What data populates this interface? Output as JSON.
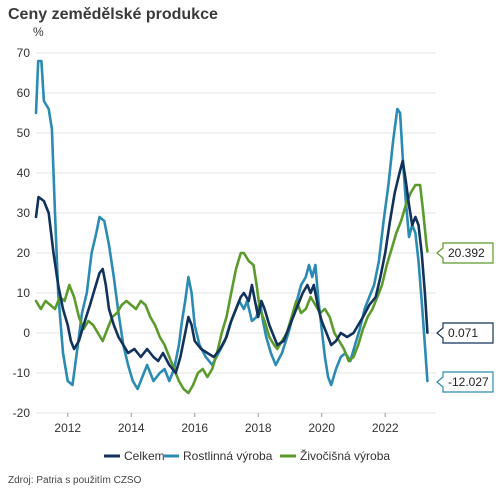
{
  "title": "Ceny zemědělské produkce",
  "unit_label": "%",
  "source": "Zdroj: Patria s použitím CZSO",
  "chart_data": {
    "type": "line",
    "title": "Ceny zemědělské produkce",
    "ylabel": "%",
    "xlabel": "",
    "ylim": [
      -20,
      70
    ],
    "xlim": [
      2011.0,
      2023.6
    ],
    "y_ticks": [
      -20,
      -10,
      0,
      10,
      20,
      30,
      40,
      50,
      60,
      70
    ],
    "x_ticks": [
      2012,
      2014,
      2016,
      2018,
      2020,
      2022
    ],
    "grid": "horizontal",
    "legend_position": "bottom",
    "series": [
      {
        "name": "Celkem",
        "color": "#13325b",
        "end_label": "0.071",
        "points": [
          [
            2011.0,
            29
          ],
          [
            2011.08,
            34
          ],
          [
            2011.25,
            33
          ],
          [
            2011.4,
            30
          ],
          [
            2011.55,
            20
          ],
          [
            2011.7,
            12
          ],
          [
            2011.85,
            6
          ],
          [
            2012.0,
            2
          ],
          [
            2012.1,
            -2
          ],
          [
            2012.2,
            -4
          ],
          [
            2012.35,
            -2
          ],
          [
            2012.5,
            2
          ],
          [
            2012.7,
            7
          ],
          [
            2012.85,
            11
          ],
          [
            2013.0,
            15
          ],
          [
            2013.1,
            16
          ],
          [
            2013.2,
            12
          ],
          [
            2013.3,
            6
          ],
          [
            2013.45,
            2
          ],
          [
            2013.6,
            -1
          ],
          [
            2013.75,
            -3
          ],
          [
            2013.9,
            -5
          ],
          [
            2014.1,
            -4
          ],
          [
            2014.3,
            -6
          ],
          [
            2014.5,
            -4
          ],
          [
            2014.7,
            -6
          ],
          [
            2014.85,
            -7
          ],
          [
            2015.0,
            -5
          ],
          [
            2015.2,
            -8
          ],
          [
            2015.4,
            -10
          ],
          [
            2015.55,
            -6
          ],
          [
            2015.7,
            0
          ],
          [
            2015.8,
            4
          ],
          [
            2015.9,
            2
          ],
          [
            2016.0,
            -2
          ],
          [
            2016.2,
            -4
          ],
          [
            2016.4,
            -5
          ],
          [
            2016.6,
            -6
          ],
          [
            2016.8,
            -4
          ],
          [
            2017.0,
            -1
          ],
          [
            2017.15,
            3
          ],
          [
            2017.3,
            6
          ],
          [
            2017.45,
            9
          ],
          [
            2017.55,
            10
          ],
          [
            2017.7,
            8
          ],
          [
            2017.8,
            12
          ],
          [
            2017.9,
            8
          ],
          [
            2018.0,
            4
          ],
          [
            2018.1,
            8
          ],
          [
            2018.2,
            6
          ],
          [
            2018.35,
            2
          ],
          [
            2018.5,
            -1
          ],
          [
            2018.6,
            -3
          ],
          [
            2018.8,
            -2
          ],
          [
            2019.0,
            2
          ],
          [
            2019.2,
            6
          ],
          [
            2019.4,
            10
          ],
          [
            2019.55,
            12
          ],
          [
            2019.65,
            10
          ],
          [
            2019.75,
            12
          ],
          [
            2019.9,
            6
          ],
          [
            2020.0,
            3
          ],
          [
            2020.15,
            0
          ],
          [
            2020.3,
            -3
          ],
          [
            2020.45,
            -2
          ],
          [
            2020.6,
            0
          ],
          [
            2020.8,
            -1
          ],
          [
            2021.0,
            0
          ],
          [
            2021.15,
            2
          ],
          [
            2021.3,
            4
          ],
          [
            2021.5,
            7
          ],
          [
            2021.7,
            9
          ],
          [
            2021.85,
            14
          ],
          [
            2022.0,
            20
          ],
          [
            2022.15,
            28
          ],
          [
            2022.3,
            35
          ],
          [
            2022.45,
            40
          ],
          [
            2022.55,
            43
          ],
          [
            2022.65,
            38
          ],
          [
            2022.75,
            32
          ],
          [
            2022.85,
            27
          ],
          [
            2022.95,
            29
          ],
          [
            2023.05,
            27
          ],
          [
            2023.15,
            20
          ],
          [
            2023.25,
            10
          ],
          [
            2023.33,
            0.071
          ]
        ]
      },
      {
        "name": "Rostlinná výroba",
        "color": "#2b8bb2",
        "end_label": "-12.027",
        "points": [
          [
            2011.0,
            55
          ],
          [
            2011.07,
            68
          ],
          [
            2011.17,
            68
          ],
          [
            2011.25,
            58
          ],
          [
            2011.4,
            56
          ],
          [
            2011.5,
            51
          ],
          [
            2011.6,
            30
          ],
          [
            2011.7,
            10
          ],
          [
            2011.85,
            -5
          ],
          [
            2012.0,
            -12
          ],
          [
            2012.15,
            -13
          ],
          [
            2012.3,
            -4
          ],
          [
            2012.45,
            5
          ],
          [
            2012.6,
            10
          ],
          [
            2012.75,
            20
          ],
          [
            2012.9,
            25
          ],
          [
            2013.0,
            29
          ],
          [
            2013.15,
            28
          ],
          [
            2013.3,
            22
          ],
          [
            2013.45,
            14
          ],
          [
            2013.6,
            5
          ],
          [
            2013.75,
            -3
          ],
          [
            2013.9,
            -8
          ],
          [
            2014.05,
            -12
          ],
          [
            2014.2,
            -14
          ],
          [
            2014.35,
            -11
          ],
          [
            2014.5,
            -8
          ],
          [
            2014.7,
            -12
          ],
          [
            2014.9,
            -10
          ],
          [
            2015.05,
            -9
          ],
          [
            2015.2,
            -12
          ],
          [
            2015.35,
            -9
          ],
          [
            2015.5,
            -3
          ],
          [
            2015.6,
            3
          ],
          [
            2015.7,
            8
          ],
          [
            2015.8,
            14
          ],
          [
            2015.9,
            10
          ],
          [
            2016.0,
            2
          ],
          [
            2016.15,
            -3
          ],
          [
            2016.35,
            -6
          ],
          [
            2016.55,
            -8
          ],
          [
            2016.75,
            -5
          ],
          [
            2016.95,
            -2
          ],
          [
            2017.1,
            2
          ],
          [
            2017.25,
            5
          ],
          [
            2017.4,
            8
          ],
          [
            2017.55,
            6
          ],
          [
            2017.65,
            8
          ],
          [
            2017.8,
            3
          ],
          [
            2017.95,
            4
          ],
          [
            2018.05,
            8
          ],
          [
            2018.15,
            3
          ],
          [
            2018.25,
            -1
          ],
          [
            2018.4,
            -5
          ],
          [
            2018.55,
            -8
          ],
          [
            2018.75,
            -5
          ],
          [
            2018.95,
            0
          ],
          [
            2019.15,
            6
          ],
          [
            2019.35,
            12
          ],
          [
            2019.5,
            14
          ],
          [
            2019.6,
            17
          ],
          [
            2019.7,
            14
          ],
          [
            2019.8,
            17
          ],
          [
            2019.9,
            8
          ],
          [
            2020.0,
            1
          ],
          [
            2020.1,
            -6
          ],
          [
            2020.2,
            -11
          ],
          [
            2020.3,
            -13
          ],
          [
            2020.45,
            -9
          ],
          [
            2020.6,
            -6
          ],
          [
            2020.75,
            -5
          ],
          [
            2020.9,
            -7
          ],
          [
            2021.05,
            -3
          ],
          [
            2021.2,
            1
          ],
          [
            2021.35,
            6
          ],
          [
            2021.5,
            9
          ],
          [
            2021.65,
            12
          ],
          [
            2021.8,
            18
          ],
          [
            2021.95,
            28
          ],
          [
            2022.1,
            37
          ],
          [
            2022.25,
            48
          ],
          [
            2022.38,
            56
          ],
          [
            2022.47,
            55
          ],
          [
            2022.55,
            44
          ],
          [
            2022.65,
            33
          ],
          [
            2022.75,
            24
          ],
          [
            2022.85,
            27
          ],
          [
            2022.95,
            25
          ],
          [
            2023.05,
            18
          ],
          [
            2023.15,
            8
          ],
          [
            2023.25,
            -3
          ],
          [
            2023.33,
            -12.027
          ]
        ]
      },
      {
        "name": "Živočišná výroba",
        "color": "#5b9b2b",
        "end_label": "20.392",
        "points": [
          [
            2011.0,
            8
          ],
          [
            2011.15,
            6
          ],
          [
            2011.3,
            8
          ],
          [
            2011.45,
            7
          ],
          [
            2011.6,
            6
          ],
          [
            2011.75,
            9
          ],
          [
            2011.9,
            8
          ],
          [
            2012.05,
            12
          ],
          [
            2012.2,
            9
          ],
          [
            2012.35,
            4
          ],
          [
            2012.5,
            1
          ],
          [
            2012.65,
            3
          ],
          [
            2012.8,
            2
          ],
          [
            2012.95,
            0
          ],
          [
            2013.1,
            -2
          ],
          [
            2013.25,
            1
          ],
          [
            2013.4,
            4
          ],
          [
            2013.55,
            5
          ],
          [
            2013.7,
            7
          ],
          [
            2013.85,
            8
          ],
          [
            2014.0,
            7
          ],
          [
            2014.15,
            6
          ],
          [
            2014.3,
            8
          ],
          [
            2014.45,
            7
          ],
          [
            2014.6,
            4
          ],
          [
            2014.75,
            2
          ],
          [
            2014.9,
            -1
          ],
          [
            2015.05,
            -3
          ],
          [
            2015.2,
            -6
          ],
          [
            2015.35,
            -9
          ],
          [
            2015.5,
            -12
          ],
          [
            2015.65,
            -14
          ],
          [
            2015.8,
            -15
          ],
          [
            2015.95,
            -13
          ],
          [
            2016.1,
            -10
          ],
          [
            2016.25,
            -9
          ],
          [
            2016.4,
            -11
          ],
          [
            2016.55,
            -9
          ],
          [
            2016.7,
            -5
          ],
          [
            2016.85,
            0
          ],
          [
            2017.0,
            4
          ],
          [
            2017.15,
            10
          ],
          [
            2017.3,
            16
          ],
          [
            2017.45,
            20
          ],
          [
            2017.55,
            20
          ],
          [
            2017.7,
            18
          ],
          [
            2017.85,
            17
          ],
          [
            2017.95,
            12
          ],
          [
            2018.05,
            6
          ],
          [
            2018.2,
            3
          ],
          [
            2018.35,
            -1
          ],
          [
            2018.5,
            -3
          ],
          [
            2018.6,
            -4
          ],
          [
            2018.75,
            -2
          ],
          [
            2018.9,
            0
          ],
          [
            2019.05,
            4
          ],
          [
            2019.2,
            8
          ],
          [
            2019.35,
            5
          ],
          [
            2019.5,
            6
          ],
          [
            2019.65,
            9
          ],
          [
            2019.8,
            7
          ],
          [
            2019.95,
            5
          ],
          [
            2020.1,
            6
          ],
          [
            2020.25,
            4
          ],
          [
            2020.4,
            0
          ],
          [
            2020.55,
            -2
          ],
          [
            2020.7,
            -4
          ],
          [
            2020.85,
            -7
          ],
          [
            2021.0,
            -6
          ],
          [
            2021.15,
            -3
          ],
          [
            2021.3,
            1
          ],
          [
            2021.45,
            4
          ],
          [
            2021.6,
            6
          ],
          [
            2021.75,
            9
          ],
          [
            2021.9,
            12
          ],
          [
            2022.05,
            17
          ],
          [
            2022.2,
            21
          ],
          [
            2022.35,
            25
          ],
          [
            2022.5,
            28
          ],
          [
            2022.65,
            32
          ],
          [
            2022.8,
            35
          ],
          [
            2022.95,
            37
          ],
          [
            2023.1,
            37
          ],
          [
            2023.2,
            30
          ],
          [
            2023.3,
            22
          ],
          [
            2023.33,
            20.392
          ]
        ]
      }
    ]
  }
}
